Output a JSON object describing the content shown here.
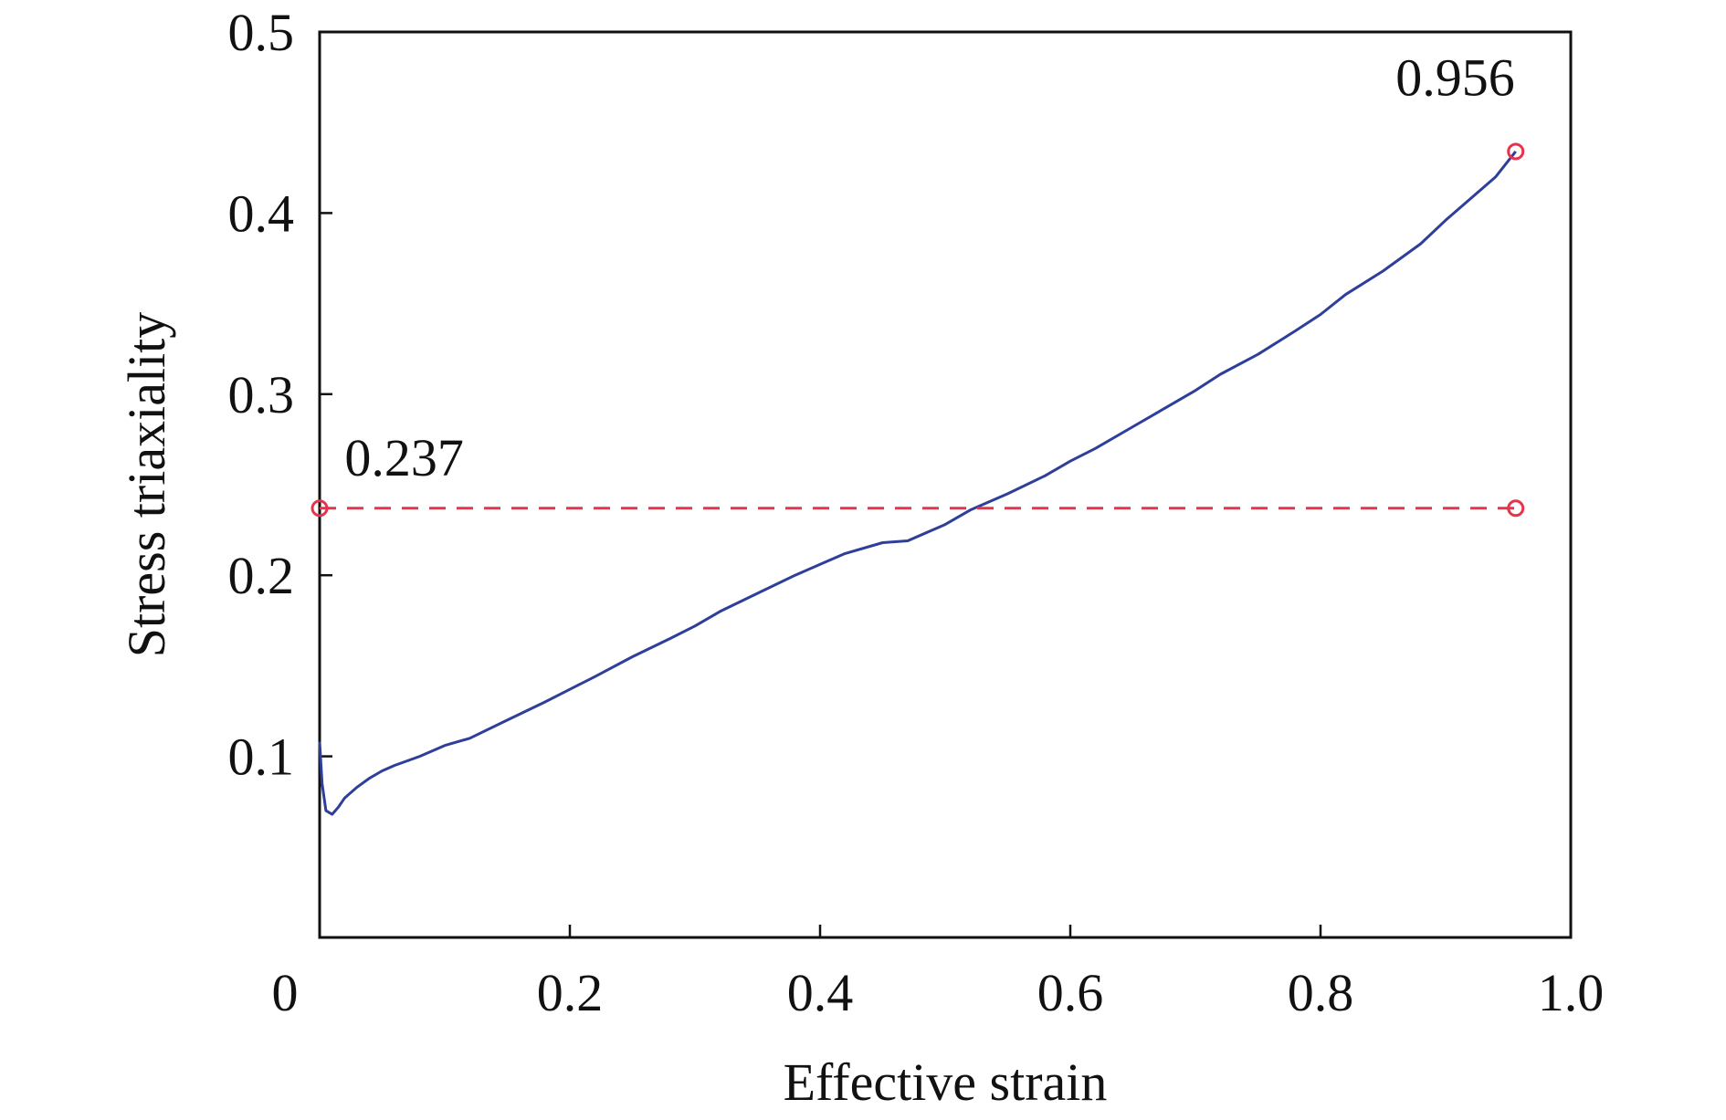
{
  "chart_data": {
    "type": "line",
    "title": "",
    "xlabel": "Effective strain",
    "ylabel": "Stress triaxiality",
    "xlim": [
      0,
      1.0
    ],
    "ylim": [
      0,
      0.5
    ],
    "x_ticks": [
      0.2,
      0.4,
      0.6,
      0.8,
      1.0
    ],
    "x_tick_labels": [
      "0.2",
      "0.4",
      "0.6",
      "0.8",
      "1.0"
    ],
    "y_ticks": [
      0.1,
      0.2,
      0.3,
      0.4,
      0.5
    ],
    "y_tick_labels": [
      "0.1",
      "0.2",
      "0.3",
      "0.4",
      "0.5"
    ],
    "origin_label": "0",
    "grid": false,
    "series": [
      {
        "color": "#2d3f9a",
        "x": [
          0.0,
          0.002,
          0.005,
          0.01,
          0.015,
          0.02,
          0.03,
          0.04,
          0.05,
          0.06,
          0.08,
          0.1,
          0.12,
          0.15,
          0.18,
          0.2,
          0.22,
          0.25,
          0.28,
          0.3,
          0.32,
          0.35,
          0.38,
          0.4,
          0.42,
          0.45,
          0.47,
          0.5,
          0.52,
          0.55,
          0.58,
          0.6,
          0.62,
          0.65,
          0.68,
          0.7,
          0.72,
          0.75,
          0.78,
          0.8,
          0.82,
          0.85,
          0.88,
          0.9,
          0.92,
          0.94,
          0.956
        ],
        "y": [
          0.108,
          0.085,
          0.07,
          0.068,
          0.072,
          0.077,
          0.083,
          0.088,
          0.092,
          0.095,
          0.1,
          0.106,
          0.11,
          0.12,
          0.13,
          0.137,
          0.144,
          0.155,
          0.165,
          0.172,
          0.18,
          0.19,
          0.2,
          0.206,
          0.212,
          0.218,
          0.219,
          0.228,
          0.236,
          0.245,
          0.255,
          0.263,
          0.27,
          0.282,
          0.294,
          0.302,
          0.311,
          0.322,
          0.335,
          0.344,
          0.355,
          0.368,
          0.383,
          0.396,
          0.408,
          0.42,
          0.434
        ]
      },
      {
        "style": "dashed",
        "color": "#e8334d",
        "x": [
          0.0,
          0.956
        ],
        "y": [
          0.237,
          0.237
        ]
      }
    ],
    "markers": [
      {
        "x": 0.0,
        "y": 0.237,
        "color": "#e8334d"
      },
      {
        "x": 0.956,
        "y": 0.237,
        "color": "#e8334d"
      },
      {
        "x": 0.956,
        "y": 0.434,
        "color": "#e8334d"
      }
    ],
    "annotations": [
      {
        "text": "0.237",
        "x": 0.02,
        "y": 0.255
      },
      {
        "text": "0.956",
        "x": 0.86,
        "y": 0.465
      }
    ]
  }
}
